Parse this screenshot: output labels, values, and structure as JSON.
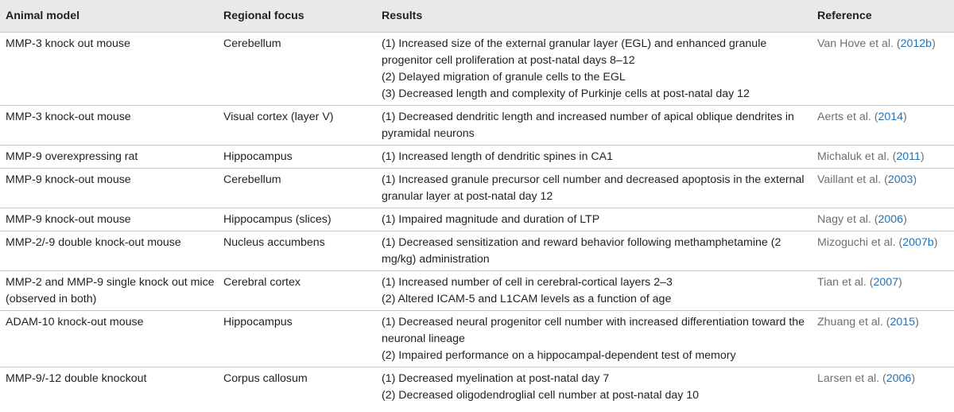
{
  "headers": {
    "animal_model": "Animal model",
    "regional_focus": "Regional focus",
    "results": "Results",
    "reference": "Reference"
  },
  "rows": [
    {
      "animal_model": "MMP-3 knock out mouse",
      "regional_focus": "Cerebellum",
      "results": [
        "(1) Increased size of the external granular layer (EGL) and enhanced granule progenitor cell proliferation at post-natal days 8–12",
        "(2) Delayed migration of granule cells to the EGL",
        "(3) Decreased length and complexity of Purkinje cells at post-natal day 12"
      ],
      "reference_authors": "Van Hove et al. (",
      "reference_year": "2012b",
      "reference_close": ")"
    },
    {
      "animal_model": "MMP-3 knock-out mouse",
      "regional_focus": "Visual cortex (layer V)",
      "results": [
        "(1) Decreased dendritic length and increased number of apical oblique dendrites in pyramidal neurons"
      ],
      "reference_authors": "Aerts et al. (",
      "reference_year": "2014",
      "reference_close": ")"
    },
    {
      "animal_model": "MMP-9 overexpressing rat",
      "regional_focus": "Hippocampus",
      "results": [
        "(1) Increased length of dendritic spines in CA1"
      ],
      "reference_authors": "Michaluk et al. (",
      "reference_year": "2011",
      "reference_close": ")"
    },
    {
      "animal_model": "MMP-9 knock-out mouse",
      "regional_focus": "Cerebellum",
      "results": [
        "(1) Increased granule precursor cell number and decreased apoptosis in the external granular layer at post-natal day 12"
      ],
      "reference_authors": "Vaillant et al. (",
      "reference_year": "2003",
      "reference_close": ")"
    },
    {
      "animal_model": "MMP-9 knock-out mouse",
      "regional_focus": "Hippocampus (slices)",
      "results": [
        "(1) Impaired magnitude and duration of LTP"
      ],
      "reference_authors": "Nagy et al. (",
      "reference_year": "2006",
      "reference_close": ")"
    },
    {
      "animal_model": "MMP-2/-9 double knock-out mouse",
      "regional_focus": "Nucleus accumbens",
      "results": [
        "(1) Decreased sensitization and reward behavior following methamphetamine (2 mg/kg) administration"
      ],
      "reference_authors": "Mizoguchi et al. (",
      "reference_year": "2007b",
      "reference_close": ")"
    },
    {
      "animal_model": "MMP-2 and MMP-9 single knock out mice (observed in both)",
      "regional_focus": "Cerebral cortex",
      "results": [
        "(1) Increased number of cell in cerebral-cortical layers 2–3",
        "(2) Altered ICAM-5 and L1CAM levels as a function of age"
      ],
      "reference_authors": "Tian et al. (",
      "reference_year": "2007",
      "reference_close": ")"
    },
    {
      "animal_model": "ADAM-10 knock-out mouse",
      "regional_focus": "Hippocampus",
      "results": [
        "(1) Decreased neural progenitor cell number with increased differentiation toward the neuronal lineage",
        "(2) Impaired performance on a hippocampal-dependent test of memory"
      ],
      "reference_authors": "Zhuang et al. (",
      "reference_year": "2015",
      "reference_close": ")"
    },
    {
      "animal_model": "MMP-9/-12 double knockout",
      "regional_focus": "Corpus callosum",
      "results": [
        "(1) Decreased myelination at post-natal day 7",
        "(2) Decreased oligodendroglial cell number at post-natal day 10"
      ],
      "reference_authors": "Larsen et al. (",
      "reference_year": "2006",
      "reference_close": ")"
    }
  ]
}
